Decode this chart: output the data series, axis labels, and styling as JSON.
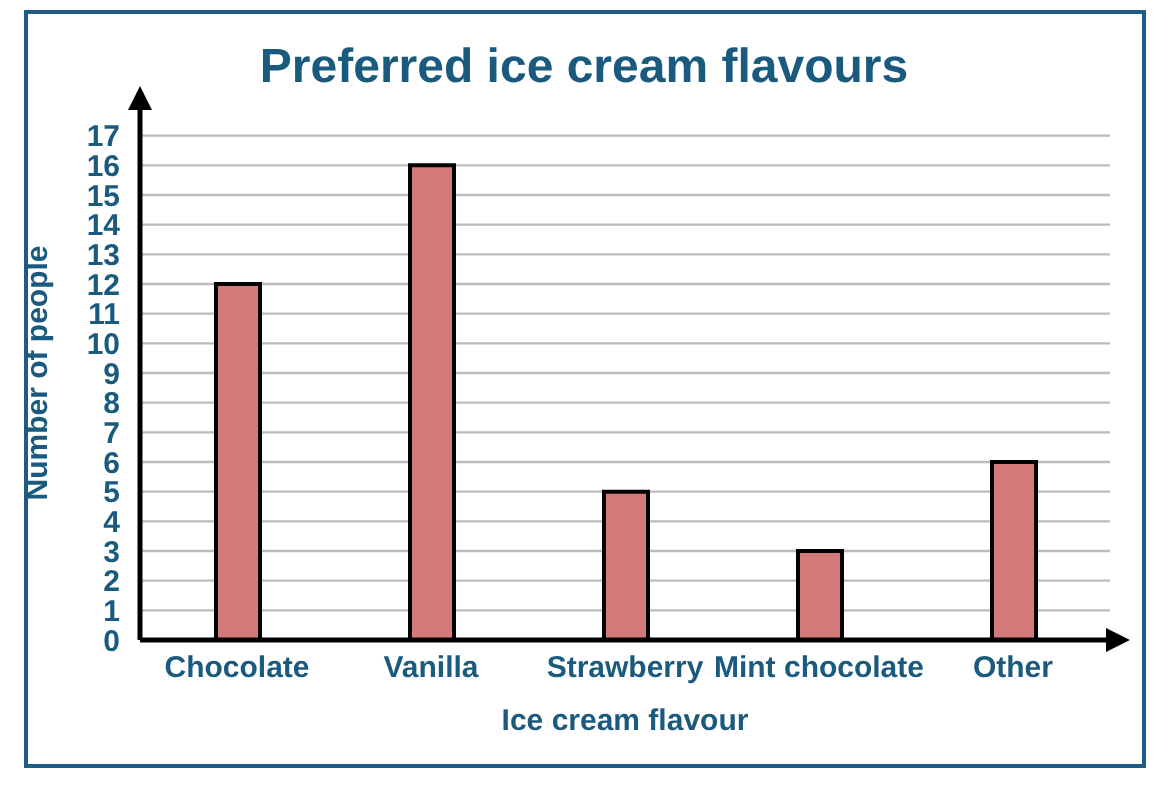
{
  "chart_data": {
    "type": "bar",
    "title": "Preferred ice cream flavours",
    "xlabel": "Ice cream flavour",
    "ylabel": "Number of people",
    "categories": [
      "Chocolate",
      "Vanilla",
      "Strawberry",
      "Mint chocolate",
      "Other"
    ],
    "values": [
      12,
      16,
      5,
      3,
      6
    ],
    "color": "#d47a7a",
    "ylim": [
      0,
      18
    ],
    "yticks": [
      0,
      1,
      2,
      3,
      4,
      5,
      6,
      7,
      8,
      9,
      10,
      11,
      12,
      13,
      14,
      15,
      16,
      17
    ],
    "grid": "y",
    "legend": false
  }
}
